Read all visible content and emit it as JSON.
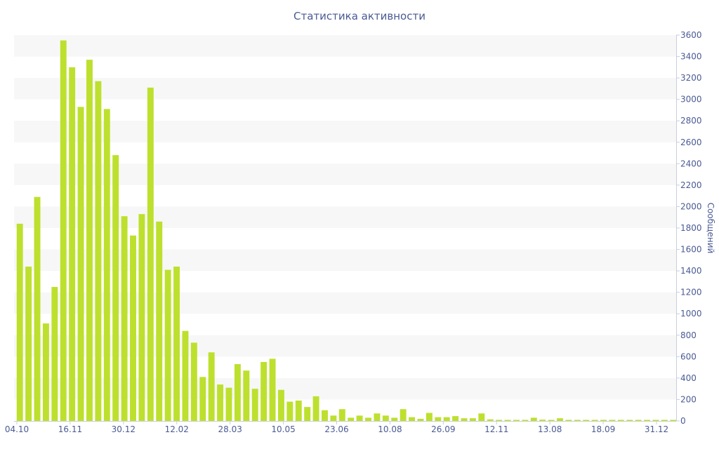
{
  "chart_data": {
    "type": "bar",
    "title": "Статистика активности",
    "xlabel": "",
    "ylabel": "Сообщений",
    "ylim": [
      0,
      3600
    ],
    "y_ticks": [
      0,
      200,
      400,
      600,
      800,
      1000,
      1200,
      1400,
      1600,
      1800,
      2000,
      2200,
      2400,
      2600,
      2800,
      3000,
      3200,
      3400,
      3600
    ],
    "x_tick_labels": [
      "04.10",
      "16.11",
      "30.12",
      "12.02",
      "28.03",
      "10.05",
      "23.06",
      "10.08",
      "26.09",
      "12.11",
      "13.08",
      "18.09",
      "31.12"
    ],
    "y_axis_side": "right",
    "grid": "alternating horizontal bands",
    "legend": "none",
    "bar_color": "#bde02e",
    "values": [
      1840,
      1440,
      2090,
      910,
      1250,
      3550,
      3300,
      2930,
      3370,
      3170,
      2910,
      2480,
      1910,
      1730,
      1930,
      3110,
      1860,
      1410,
      1440,
      840,
      730,
      410,
      640,
      340,
      310,
      530,
      470,
      300,
      550,
      580,
      290,
      180,
      190,
      130,
      230,
      100,
      50,
      110,
      30,
      50,
      30,
      70,
      50,
      30,
      110,
      35,
      20,
      75,
      35,
      35,
      45,
      25,
      25,
      70,
      15,
      10,
      10,
      10,
      10,
      30,
      12,
      10,
      25,
      10,
      10,
      10,
      10,
      10,
      10,
      10,
      10,
      10,
      10,
      10,
      10,
      10
    ]
  }
}
